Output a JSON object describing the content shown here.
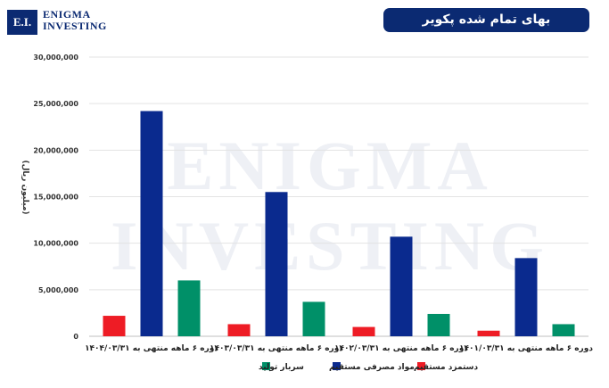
{
  "logo": {
    "initials": "E.I.",
    "line1": "ENIGMA",
    "line2": "INVESTING"
  },
  "watermark": {
    "line1": "ENIGMA",
    "line2": "INVESTING"
  },
  "chart_data": {
    "type": "bar",
    "title": "بهای تمام شده پکویر",
    "ylabel": "(میلیون ریال)",
    "ylim": [
      0,
      30000000
    ],
    "yticks": [
      0,
      5000000,
      10000000,
      15000000,
      20000000,
      25000000,
      30000000
    ],
    "ytick_labels": [
      "0",
      "5,000,000",
      "10,000,000",
      "15,000,000",
      "20,000,000",
      "25,000,000",
      "30,000,000"
    ],
    "grid": true,
    "legend_position": "bottom",
    "categories": [
      "دوره ۶ ماهه منتهی به ۱۴۰۱/۰۳/۳۱",
      "دوره ۶ ماهه منتهی به ۱۴۰۲/۰۳/۳۱",
      "دوره ۶ ماهه منتهی به ۱۴۰۳/۰۳/۳۱",
      "دوره ۶ ماهه منتهی به ۱۴۰۴/۰۳/۳۱"
    ],
    "series": [
      {
        "name": "دستمزد مستقیم",
        "color": "#ee1c25",
        "values": [
          600000,
          1000000,
          1300000,
          2200000
        ]
      },
      {
        "name": "مواد مصرفی مستقیم",
        "color": "#0a2a8e",
        "values": [
          8400000,
          10700000,
          15500000,
          24200000
        ]
      },
      {
        "name": "سربار تولید",
        "color": "#009068",
        "values": [
          1300000,
          2400000,
          3700000,
          6000000
        ]
      }
    ]
  }
}
